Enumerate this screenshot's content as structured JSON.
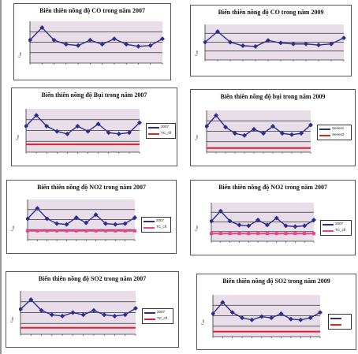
{
  "colors": {
    "line": "#2a2f8a",
    "plotbg": "#e8dde9",
    "threshold_red": "#e0202a",
    "threshold_pink": "#e7428a"
  },
  "chart_data": [
    {
      "id": "c1",
      "type": "line",
      "title": "Biến thiên nồng độ CO trong năm 2007",
      "ylabel": "C₀₀₀",
      "y": [
        0.55,
        0.85,
        0.55,
        0.45,
        0.42,
        0.55,
        0.45,
        0.58,
        0.45,
        0.4,
        0.42,
        0.58
      ],
      "ylim": [
        0,
        1
      ],
      "legend": []
    },
    {
      "id": "c2",
      "type": "line",
      "title": "Biến thiên nồng độ CO trong năm 2009",
      "ylabel": "C₀₀₀",
      "y": [
        0.5,
        0.8,
        0.5,
        0.4,
        0.38,
        0.55,
        0.48,
        0.45,
        0.45,
        0.42,
        0.45,
        0.62
      ],
      "ylim": [
        0,
        1
      ],
      "legend": []
    },
    {
      "id": "c3",
      "type": "line",
      "title": "Biến thiên nồng độ Bụi trong năm 2007",
      "ylabel": "C₀₀₀",
      "y": [
        0.6,
        0.85,
        0.6,
        0.48,
        0.42,
        0.6,
        0.48,
        0.65,
        0.45,
        0.42,
        0.45,
        0.68
      ],
      "threshold": 0.18,
      "ylim": [
        0,
        1
      ],
      "legend": [
        {
          "label": "2007",
          "color": "#2a2f8a"
        },
        {
          "label": "TC_cfl",
          "color": "#e0202a"
        }
      ]
    },
    {
      "id": "c4",
      "type": "line",
      "title": "Biến thiên nồng độ bụi trong năm 2009",
      "ylabel": "C₀₀₀",
      "y": [
        0.62,
        0.88,
        0.6,
        0.45,
        0.4,
        0.55,
        0.45,
        0.62,
        0.45,
        0.42,
        0.45,
        0.65
      ],
      "threshold": 0.1,
      "ylim": [
        0,
        1
      ],
      "legend": [
        {
          "label": "Series1",
          "color": "#2a2f8a"
        },
        {
          "label": "Series2",
          "color": "#e0202a"
        }
      ]
    },
    {
      "id": "c5",
      "type": "line",
      "title": "Biến thiên nồng độ NO2 trong năm 2007",
      "ylabel": "C₀₀₀",
      "y": [
        0.52,
        0.78,
        0.52,
        0.4,
        0.38,
        0.55,
        0.42,
        0.62,
        0.4,
        0.38,
        0.4,
        0.55
      ],
      "threshold": 0.22,
      "ylim": [
        0,
        1
      ],
      "legend": [
        {
          "label": "2007",
          "color": "#2a2f8a"
        },
        {
          "label": "TC_cfl",
          "color": "#e7428a"
        }
      ]
    },
    {
      "id": "c6",
      "type": "line",
      "title": "Biến thiên nồng độ NO2 trong năm 2007",
      "ylabel": "C₀₀₀",
      "y": [
        0.52,
        0.78,
        0.52,
        0.42,
        0.4,
        0.55,
        0.42,
        0.6,
        0.4,
        0.38,
        0.4,
        0.55
      ],
      "threshold": 0.2,
      "ylim": [
        0,
        1
      ],
      "legend": [
        {
          "label": "2007",
          "color": "#2a2f8a"
        },
        {
          "label": "TC_cfl",
          "color": "#e7428a"
        }
      ]
    },
    {
      "id": "c7",
      "type": "line",
      "title": "Biến thiên nồng độ SO2 trong năm 2007",
      "ylabel": "C₀₀₀",
      "y": [
        0.58,
        0.8,
        0.55,
        0.45,
        0.42,
        0.5,
        0.45,
        0.55,
        0.45,
        0.42,
        0.45,
        0.6
      ],
      "threshold": 0.15,
      "ylim": [
        0,
        1
      ],
      "legend": [
        {
          "label": "2007",
          "color": "#2a2f8a"
        },
        {
          "label": "TC_cfl",
          "color": "#e0202a"
        }
      ]
    },
    {
      "id": "c8",
      "type": "line",
      "title": "Biến thiên nồng độ SO2 trong năm 2009",
      "ylabel": "C₀₀₀",
      "y": [
        0.55,
        0.82,
        0.58,
        0.45,
        0.4,
        0.48,
        0.45,
        0.55,
        0.42,
        0.4,
        0.45,
        0.58
      ],
      "threshold": 0.12,
      "ylim": [
        0,
        1
      ],
      "legend": [
        {
          "label": "",
          "color": "#2a2f8a"
        },
        {
          "label": "",
          "color": "#e0202a"
        }
      ]
    }
  ]
}
